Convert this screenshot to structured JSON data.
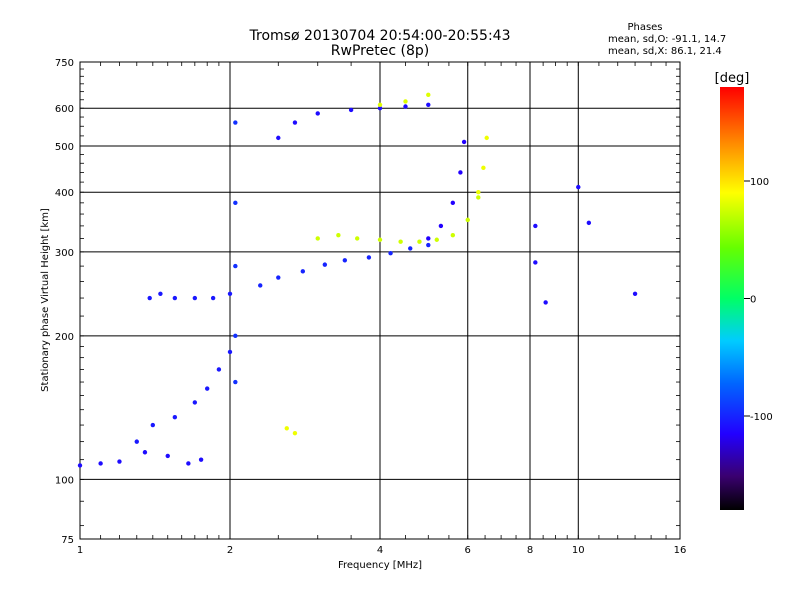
{
  "chart_data": {
    "type": "scatter",
    "title": "Tromsø 20130704 20:54:00-20:55:43",
    "subtitle": "RwPretec (8p)",
    "xlabel": "Frequency [MHz]",
    "ylabel": "Stationary phase Virtual Height [km]",
    "x_scale": "log",
    "y_scale": "log",
    "xlim": [
      1,
      16
    ],
    "ylim": [
      75,
      750
    ],
    "x_ticks": [
      "1",
      "2",
      "4",
      "6",
      "8",
      "10",
      "16"
    ],
    "x_tick_values": [
      1,
      2,
      4,
      6,
      8,
      10,
      16
    ],
    "y_ticks": [
      "750",
      "600",
      "500",
      "400",
      "300",
      "200",
      "100",
      "75"
    ],
    "y_tick_values": [
      750,
      600,
      500,
      400,
      300,
      200,
      100,
      75
    ],
    "grid": true,
    "legend": {
      "title": "Phases",
      "lines": [
        "mean, sd,O: -91.1, 14.7",
        "mean, sd,X:  86.1, 21.4"
      ],
      "placement": "top-right"
    },
    "colorbar": {
      "label": "[deg]",
      "ticks": [
        "100",
        "0",
        "-100"
      ],
      "tick_values": [
        100,
        0,
        -100
      ],
      "range": [
        -180,
        180
      ],
      "placement": "right"
    },
    "traces": [
      {
        "name": "",
        "color_deg": -110,
        "x": [
          1.0,
          1.1,
          1.2,
          1.35,
          1.5,
          1.65,
          1.75
        ],
        "y": [
          107,
          108,
          109,
          114,
          112,
          108,
          110
        ]
      },
      {
        "name": "",
        "color_deg": -105,
        "x": [
          1.3,
          1.4,
          1.55,
          1.7,
          1.8,
          1.9,
          2.0
        ],
        "y": [
          120,
          130,
          135,
          145,
          155,
          170,
          185
        ]
      },
      {
        "name": "",
        "color_deg": -105,
        "x": [
          1.38,
          1.45,
          1.55,
          1.7,
          1.85,
          2.0
        ],
        "y": [
          240,
          245,
          240,
          240,
          240,
          245
        ]
      },
      {
        "name": "",
        "color_deg": -100,
        "x": [
          2.3,
          2.5,
          2.8,
          3.1,
          3.4,
          3.8,
          4.2,
          4.6,
          5.0
        ],
        "y": [
          255,
          265,
          273,
          282,
          288,
          292,
          298,
          305,
          310
        ]
      },
      {
        "name": "",
        "color_deg": -115,
        "x": [
          5.0,
          5.3,
          5.6,
          5.8,
          5.9
        ],
        "y": [
          320,
          340,
          380,
          440,
          510
        ]
      },
      {
        "name": "",
        "color_deg": 75,
        "x": [
          3.0,
          3.3,
          3.6,
          4.0,
          4.4,
          4.8,
          5.2,
          5.6,
          6.0,
          6.3
        ],
        "y": [
          320,
          325,
          320,
          318,
          315,
          315,
          318,
          325,
          350,
          390
        ]
      },
      {
        "name": "",
        "color_deg": 85,
        "x": [
          6.3,
          6.45,
          6.55
        ],
        "y": [
          400,
          450,
          520
        ]
      },
      {
        "name": "",
        "color_deg": -110,
        "x": [
          2.5,
          2.7,
          3.0,
          3.5,
          4.0,
          4.5,
          5.0
        ],
        "y": [
          520,
          560,
          585,
          595,
          600,
          605,
          610
        ]
      },
      {
        "name": "",
        "color_deg": 80,
        "x": [
          4.0,
          4.5,
          5.0
        ],
        "y": [
          610,
          620,
          640
        ]
      },
      {
        "name": "",
        "color_deg": -95,
        "x": [
          2.05,
          2.05,
          2.05,
          2.05,
          2.05
        ],
        "y": [
          160,
          200,
          280,
          380,
          560
        ]
      },
      {
        "name": "",
        "color_deg": 85,
        "x": [
          2.6,
          2.7
        ],
        "y": [
          128,
          125
        ]
      },
      {
        "name": "",
        "color_deg": -110,
        "x": [
          8.2,
          8.2,
          8.6,
          10.0,
          10.5,
          13.0
        ],
        "y": [
          340,
          285,
          235,
          410,
          345,
          245
        ]
      }
    ]
  }
}
